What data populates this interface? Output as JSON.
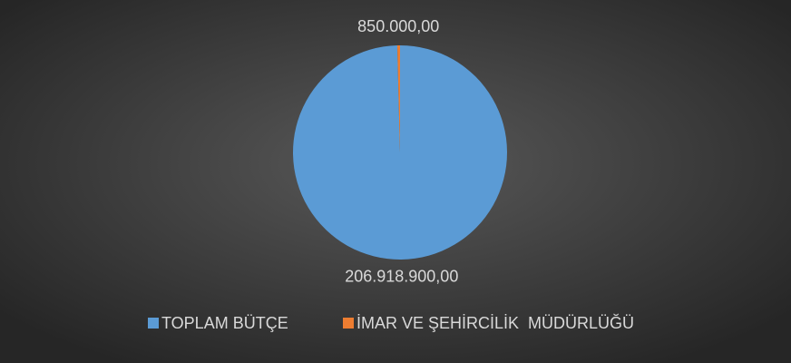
{
  "chart_data": {
    "type": "pie",
    "categories": [
      "TOPLAM BÜTÇE",
      "İMAR VE ŞEHİRCİLİK  MÜDÜRLÜĞÜ"
    ],
    "values": [
      206918900,
      850000
    ],
    "value_labels": [
      "206.918.900,00",
      "850.000,00"
    ],
    "colors": [
      "#5b9bd5",
      "#ed7d31"
    ],
    "legend": "bottom"
  }
}
